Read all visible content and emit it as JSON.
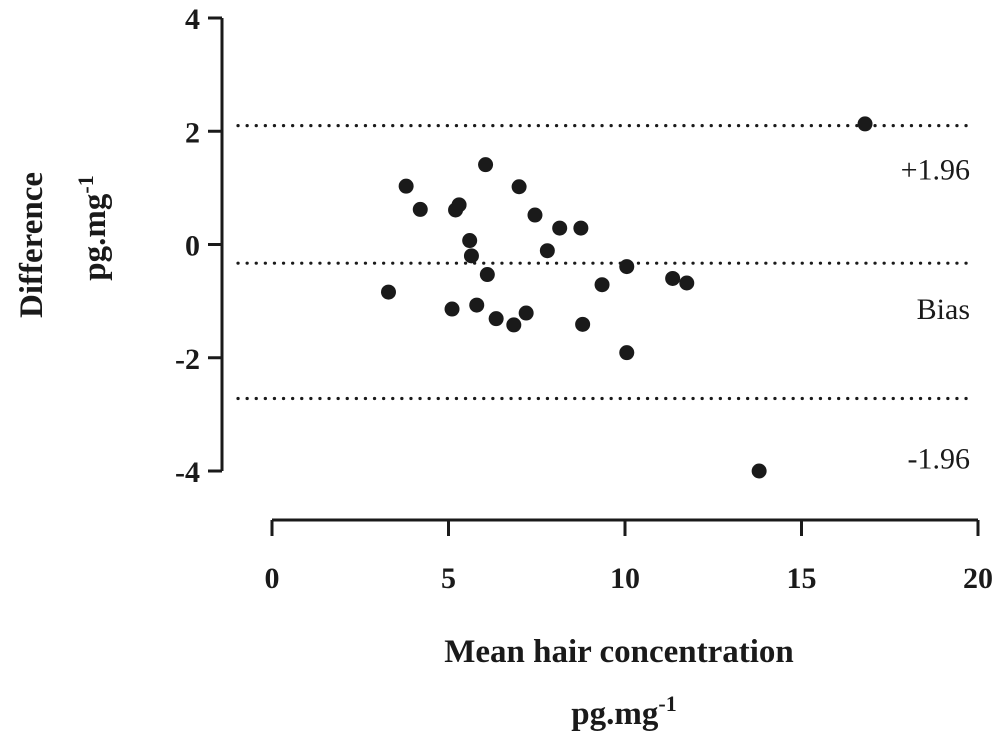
{
  "chart_data": {
    "type": "scatter",
    "title": "",
    "xlabel": "Mean hair concentration",
    "xlabel_unit": "pg.mg",
    "xlabel_unit_sup": "-1",
    "ylabel": "Difference",
    "ylabel_unit": "pg.mg",
    "ylabel_unit_sup": "-1",
    "xlim": [
      0,
      20
    ],
    "ylim": [
      -4,
      4
    ],
    "x_ticks": [
      0,
      5,
      10,
      15,
      20
    ],
    "y_ticks": [
      -4,
      -2,
      0,
      2,
      4
    ],
    "x_tick_labels": [
      "0",
      "5",
      "10",
      "15",
      "20"
    ],
    "y_tick_labels": [
      "-4",
      "-2",
      "0",
      "2",
      "4"
    ],
    "grid": false,
    "point_color": "#1a1a1a",
    "reference_lines": [
      {
        "label": "+1.96",
        "y": 2.1
      },
      {
        "label": "Bias",
        "y": -0.33
      },
      {
        "label": "-1.96",
        "y": -2.72
      }
    ],
    "points": [
      {
        "x": 3.3,
        "y": -0.84
      },
      {
        "x": 3.8,
        "y": 1.03
      },
      {
        "x": 4.2,
        "y": 0.62
      },
      {
        "x": 5.1,
        "y": -1.14
      },
      {
        "x": 5.2,
        "y": 0.61
      },
      {
        "x": 5.3,
        "y": 0.7
      },
      {
        "x": 5.6,
        "y": 0.07
      },
      {
        "x": 5.65,
        "y": -0.2
      },
      {
        "x": 5.8,
        "y": -1.07
      },
      {
        "x": 6.05,
        "y": 1.41
      },
      {
        "x": 6.1,
        "y": -0.53
      },
      {
        "x": 6.35,
        "y": -1.31
      },
      {
        "x": 6.85,
        "y": -1.42
      },
      {
        "x": 7.0,
        "y": 1.02
      },
      {
        "x": 7.2,
        "y": -1.21
      },
      {
        "x": 7.45,
        "y": 0.52
      },
      {
        "x": 7.8,
        "y": -0.11
      },
      {
        "x": 8.15,
        "y": 0.29
      },
      {
        "x": 8.75,
        "y": 0.29
      },
      {
        "x": 8.8,
        "y": -1.41
      },
      {
        "x": 9.35,
        "y": -0.71
      },
      {
        "x": 10.05,
        "y": -0.39
      },
      {
        "x": 10.05,
        "y": -1.91
      },
      {
        "x": 11.35,
        "y": -0.6
      },
      {
        "x": 11.75,
        "y": -0.68
      },
      {
        "x": 13.8,
        "y": -4.0
      },
      {
        "x": 16.8,
        "y": 2.13
      }
    ]
  }
}
